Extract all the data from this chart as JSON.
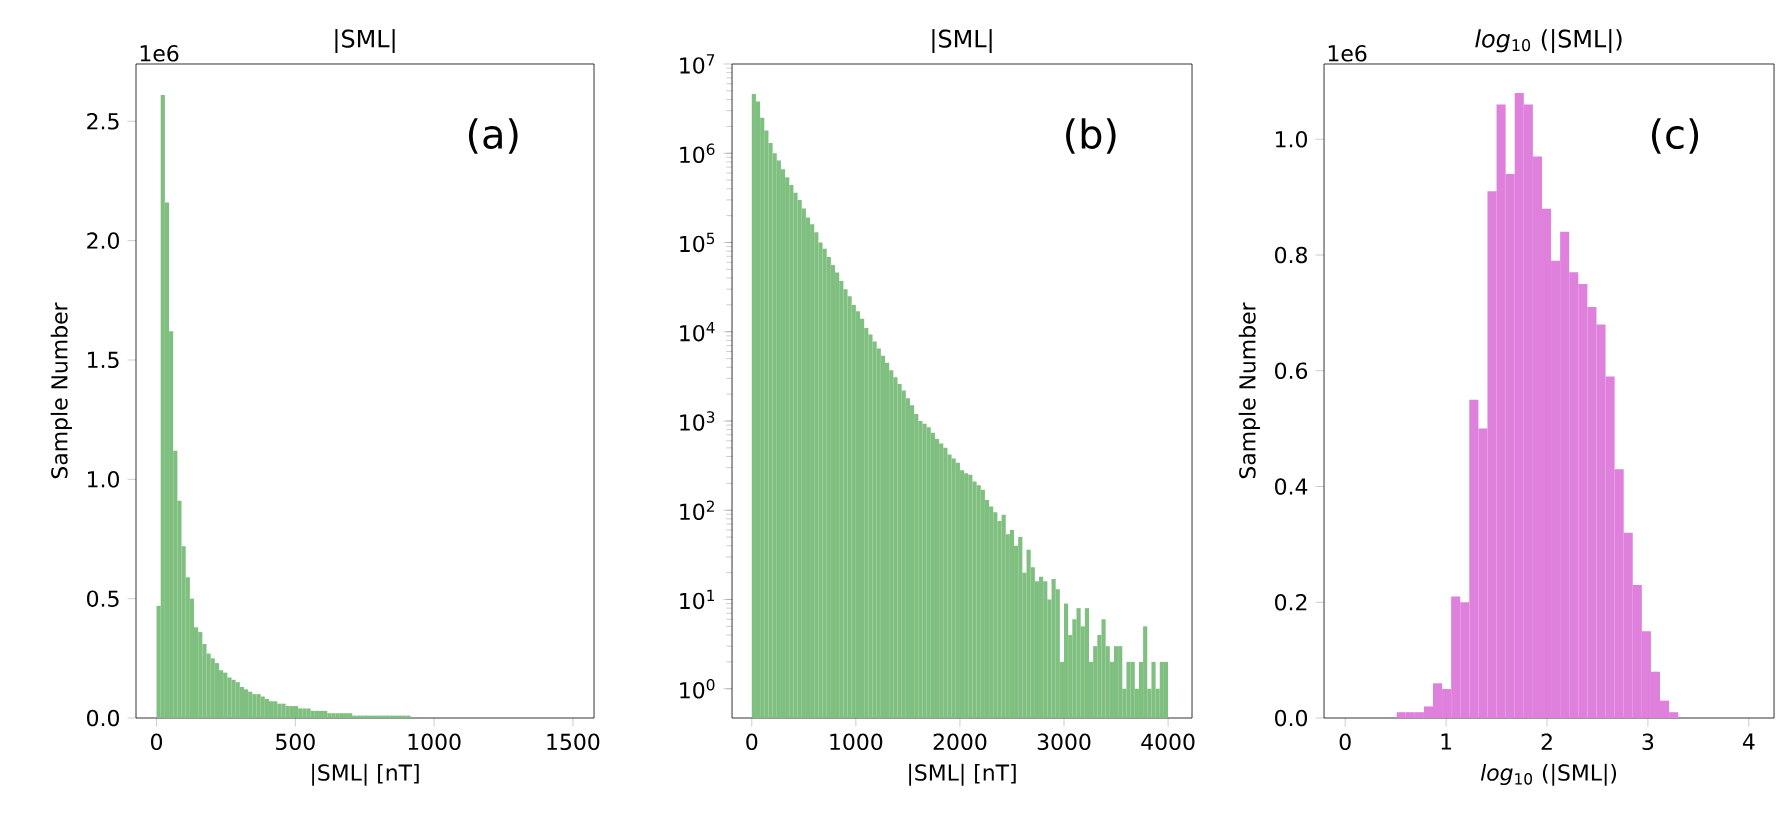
{
  "chart_data": [
    {
      "type": "histogram",
      "title": "|SML|",
      "xlabel": "|SML| [nT]",
      "ylabel": "Sample Number",
      "color": "#7fbf7f",
      "annotations": [
        "(a)",
        "1e6"
      ],
      "bins": [
        0,
        15,
        30,
        45,
        60,
        75,
        90,
        105,
        120,
        135,
        150,
        165,
        180,
        195,
        210,
        225,
        240,
        255,
        270,
        285,
        300,
        315,
        330,
        345,
        360,
        375,
        390,
        405,
        420,
        435,
        450,
        465,
        480,
        495,
        510,
        525,
        540,
        555,
        570,
        585,
        600,
        615,
        630,
        645,
        660,
        675,
        690,
        705,
        720,
        735,
        750,
        765,
        780,
        795,
        810,
        825,
        840,
        855,
        870,
        885,
        900,
        915,
        930,
        945,
        960,
        975,
        990,
        1005,
        1020,
        1035,
        1050,
        1065,
        1080,
        1095,
        1110,
        1125,
        1140,
        1155,
        1170,
        1185,
        1200,
        1215,
        1230,
        1245,
        1260,
        1275,
        1290,
        1305,
        1320,
        1335,
        1350,
        1365,
        1380,
        1395,
        1410,
        1425,
        1440,
        1455,
        1470,
        1485,
        1500
      ],
      "values": [
        0.47,
        2.61,
        2.16,
        1.62,
        1.12,
        0.91,
        0.72,
        0.59,
        0.5,
        0.38,
        0.36,
        0.31,
        0.27,
        0.25,
        0.23,
        0.2,
        0.19,
        0.17,
        0.16,
        0.15,
        0.13,
        0.12,
        0.11,
        0.1,
        0.1,
        0.09,
        0.08,
        0.07,
        0.07,
        0.06,
        0.06,
        0.05,
        0.05,
        0.05,
        0.04,
        0.04,
        0.04,
        0.03,
        0.03,
        0.03,
        0.03,
        0.02,
        0.02,
        0.02,
        0.02,
        0.02,
        0.02,
        0.01,
        0.01,
        0.01,
        0.01,
        0.01,
        0.01,
        0.01,
        0.01,
        0.01,
        0.01,
        0.01,
        0.01,
        0.01,
        0.01,
        0,
        0,
        0,
        0,
        0,
        0,
        0,
        0,
        0,
        0,
        0,
        0,
        0,
        0,
        0,
        0,
        0,
        0,
        0,
        0,
        0,
        0,
        0,
        0,
        0,
        0,
        0,
        0,
        0,
        0,
        0,
        0,
        0,
        0,
        0,
        0,
        0,
        0,
        0
      ],
      "xlim": [
        -74,
        1576
      ],
      "ylim": [
        0,
        2.74
      ],
      "xticks": [
        0,
        500,
        1000,
        1500
      ],
      "yticks": [
        {
          "value": 0,
          "label": "0.0"
        },
        0.5,
        {
          "value": 1,
          "label": "1.0"
        },
        1.5,
        {
          "value": 2,
          "label": "2.0"
        },
        2.5
      ]
    },
    {
      "type": "histogram",
      "title": "|SML|",
      "xlabel": "|SML| [nT]",
      "color": "#7fbf7f",
      "annotations": [
        "(b)"
      ],
      "log": "y",
      "bins": [
        0,
        40,
        80,
        120,
        160,
        200,
        240,
        280,
        320,
        360,
        400,
        440,
        480,
        520,
        560,
        600,
        640,
        680,
        720,
        760,
        800,
        840,
        880,
        920,
        960,
        1000,
        1040,
        1080,
        1120,
        1160,
        1200,
        1240,
        1280,
        1320,
        1360,
        1400,
        1440,
        1480,
        1520,
        1560,
        1600,
        1640,
        1680,
        1720,
        1760,
        1800,
        1840,
        1880,
        1920,
        1960,
        2000,
        2040,
        2080,
        2120,
        2160,
        2200,
        2240,
        2280,
        2320,
        2360,
        2400,
        2440,
        2480,
        2520,
        2560,
        2600,
        2640,
        2680,
        2720,
        2760,
        2800,
        2840,
        2880,
        2920,
        2960,
        3000,
        3040,
        3080,
        3120,
        3160,
        3200,
        3240,
        3280,
        3320,
        3360,
        3400,
        3440,
        3480,
        3520,
        3560,
        3600,
        3640,
        3680,
        3720,
        3760,
        3800,
        3840,
        3880,
        3920,
        3960,
        4000
      ],
      "values": [
        4600000,
        3800000,
        2500000,
        1800000,
        1300000,
        1000000,
        830000,
        660000,
        540000,
        440000,
        360000,
        300000,
        240000,
        190000,
        160000,
        130000,
        100000,
        85000,
        69000,
        56000,
        46000,
        37000,
        30000,
        25000,
        20000,
        17000,
        14000,
        11000,
        9300,
        7800,
        6500,
        5400,
        4500,
        3700,
        3100,
        2600,
        2200,
        1800,
        1500,
        1200,
        1000,
        930,
        850,
        740,
        630,
        560,
        500,
        420,
        380,
        340,
        280,
        260,
        250,
        210,
        190,
        170,
        130,
        110,
        95,
        76,
        89,
        54,
        60,
        40,
        50,
        20,
        36,
        23,
        16,
        18,
        16,
        10,
        17,
        13,
        2,
        9,
        4,
        6,
        8,
        5,
        8,
        2,
        3,
        4,
        6,
        3,
        2,
        3,
        3,
        1,
        2,
        2,
        1,
        2,
        5,
        1,
        2,
        1,
        2,
        2
      ],
      "xlim": [
        -190,
        4230
      ],
      "ylim": [
        0.47,
        10000000
      ],
      "xticks": [
        0,
        1000,
        2000,
        3000,
        4000
      ],
      "yticks": [
        {
          "value": 1,
          "label": "10$^{0}$"
        },
        {
          "value": 10,
          "label": "10$^{1}$"
        },
        {
          "value": 100,
          "label": "10$^{2}$"
        },
        {
          "value": 1000,
          "label": "10$^{3}$"
        },
        {
          "value": 10000,
          "label": "10$^{4}$"
        },
        {
          "value": 100000,
          "label": "10$^{5}$"
        },
        {
          "value": 1000000,
          "label": "10$^{6}$"
        },
        {
          "value": 10000000,
          "label": "10$^{7}$"
        }
      ]
    },
    {
      "type": "histogram",
      "title": "*log*$_{10}$ (|SML|)",
      "xlabel": "*log*$_{10}$ (|SML|)",
      "ylabel": "Sample Number",
      "color": "#de80dc",
      "annotations": [
        "(c)",
        "1e6"
      ],
      "bins": [
        0.06,
        0.15,
        0.24,
        0.33,
        0.42,
        0.51,
        0.6,
        0.69,
        0.78,
        0.87,
        0.96,
        1.05,
        1.14,
        1.23,
        1.32,
        1.41,
        1.5,
        1.59,
        1.68,
        1.77,
        1.86,
        1.95,
        2.04,
        2.13,
        2.22,
        2.31,
        2.4,
        2.49,
        2.58,
        2.67,
        2.76,
        2.85,
        2.94,
        3.03,
        3.12,
        3.21,
        3.3,
        3.39,
        3.48,
        3.57,
        3.66,
        3.75,
        3.84,
        3.93,
        4.02
      ],
      "values": [
        0,
        0,
        0,
        0,
        0,
        0.01,
        0.01,
        0.01,
        0.02,
        0.06,
        0.05,
        0.21,
        0.2,
        0.55,
        0.5,
        0.91,
        1.06,
        0.94,
        1.08,
        1.06,
        0.97,
        0.88,
        0.79,
        0.84,
        0.77,
        0.75,
        0.71,
        0.68,
        0.59,
        0.43,
        0.32,
        0.23,
        0.15,
        0.08,
        0.03,
        0.01,
        0,
        0,
        0,
        0,
        0,
        0,
        0,
        0
      ],
      "xlim": [
        -0.21,
        4.25
      ],
      "ylim": [
        0,
        1.13
      ],
      "xticks": [
        0,
        1,
        2,
        3,
        4
      ],
      "yticks": [
        {
          "value": 0,
          "label": "0.0"
        },
        0.2,
        0.4,
        0.6,
        0.8,
        {
          "value": 1,
          "label": "1.0"
        }
      ]
    }
  ]
}
